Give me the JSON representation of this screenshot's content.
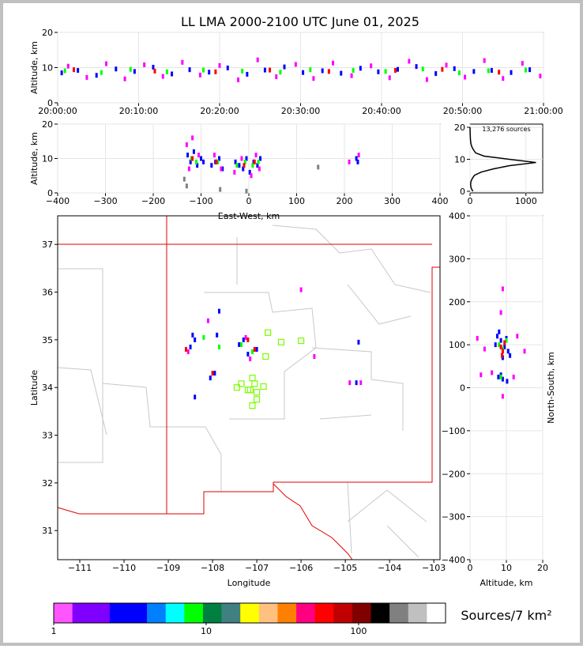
{
  "chart_data": [
    {
      "type": "scatter",
      "title": "LL LMA 2000-2100 UTC June 01, 2025",
      "ylabel": "Altitude, km",
      "xlim": [
        0,
        60
      ],
      "xticks": [
        {
          "value": 0,
          "label": "20:00:00"
        },
        {
          "value": 10,
          "label": "20:10:00"
        },
        {
          "value": 20,
          "label": "20:20:00"
        },
        {
          "value": 30,
          "label": "20:30:00"
        },
        {
          "value": 40,
          "label": "20:40:00"
        },
        {
          "value": 50,
          "label": "20:50:00"
        },
        {
          "value": 60,
          "label": "21:00:00"
        }
      ],
      "ylim": [
        0,
        20
      ],
      "yticks": [
        0,
        10,
        20
      ],
      "grid": true,
      "series": [
        {
          "color": "#0000ff",
          "x": [
            0.5,
            2.5,
            4.8,
            7.2,
            9.5,
            11.8,
            14.1,
            16.3,
            18.7,
            21,
            23.4,
            25.6,
            28,
            30.3,
            32.7,
            35,
            37.4,
            39.6,
            42,
            44.3,
            46.7,
            49,
            51.4,
            53.6,
            56,
            58.3
          ],
          "y": [
            8.5,
            9.2,
            7.8,
            9.6,
            8.9,
            10.1,
            8.2,
            9.4,
            8.7,
            9.9,
            8.1,
            9.3,
            10.2,
            8.6,
            9.1,
            8.4,
            9.8,
            8.8,
            9.5,
            10.3,
            8.3,
            9.7,
            8.9,
            9.2,
            8.6,
            9.4
          ]
        },
        {
          "color": "#ff00ff",
          "x": [
            1.3,
            3.6,
            6,
            8.3,
            10.7,
            13,
            15.4,
            17.6,
            20,
            22.3,
            24.7,
            27,
            29.4,
            31.6,
            34,
            36.3,
            38.7,
            41,
            43.4,
            45.6,
            48,
            50.3,
            52.7,
            55,
            57.4,
            59.6
          ],
          "y": [
            10.4,
            7.2,
            11.1,
            6.8,
            10.8,
            7.5,
            11.5,
            7.9,
            10.6,
            6.5,
            12.2,
            7.4,
            10.9,
            6.9,
            11.3,
            7.7,
            10.5,
            7.1,
            11.8,
            6.6,
            10.7,
            7.3,
            12,
            6.9,
            11.2,
            7.6
          ]
        },
        {
          "color": "#00ff00",
          "x": [
            0.9,
            5.4,
            9,
            13.5,
            18,
            22.8,
            27.5,
            31.2,
            36.5,
            40.5,
            45.1,
            49.6,
            53.2,
            57.8
          ],
          "y": [
            9.1,
            8.6,
            9.5,
            8.8,
            9.3,
            9,
            8.7,
            9.4,
            9.2,
            8.9,
            9.6,
            8.5,
            9.1,
            9.3
          ]
        },
        {
          "color": "#ff0000",
          "x": [
            2,
            12,
            19.5,
            26.2,
            33.5,
            41.7,
            47.5,
            54.5
          ],
          "y": [
            9.4,
            9,
            8.8,
            9.3,
            8.9,
            9.2,
            9.5,
            8.7
          ]
        }
      ]
    },
    {
      "type": "scatter",
      "xlabel": "East-West, km",
      "ylabel": "Altitude, km",
      "xlim": [
        -400,
        400
      ],
      "xticks": [
        {
          "value": -400,
          "label": "−400"
        },
        {
          "value": -300,
          "label": "−300"
        },
        {
          "value": -200,
          "label": "−200"
        },
        {
          "value": -100,
          "label": "−100"
        },
        0,
        100,
        200,
        300,
        400
      ],
      "ylim": [
        0,
        20
      ],
      "yticks": [
        0,
        10,
        20
      ],
      "grid": true,
      "series": [
        {
          "color": "#0000ff",
          "x": [
            -128,
            -122,
            -115,
            -108,
            -100,
            -95,
            -78,
            -70,
            -62,
            -55,
            -28,
            -20,
            -12,
            -5,
            2,
            10,
            18,
            24,
            225,
            228
          ],
          "y": [
            11,
            9,
            12,
            8,
            10,
            9,
            8,
            9,
            10,
            7,
            9,
            8,
            7,
            10,
            6,
            9,
            8,
            10,
            10,
            9
          ]
        },
        {
          "color": "#ff00ff",
          "x": [
            -130,
            -125,
            -118,
            -105,
            -72,
            -58,
            -30,
            -15,
            5,
            15,
            22,
            210,
            230
          ],
          "y": [
            14,
            7,
            16,
            11,
            11,
            7,
            6,
            10,
            5,
            11,
            7,
            9,
            11
          ]
        },
        {
          "color": "#00ff00",
          "x": [
            -120,
            -110,
            -65,
            -25,
            -8,
            8,
            20
          ],
          "y": [
            10,
            9,
            9,
            8,
            9,
            8,
            9
          ]
        },
        {
          "color": "#ff0000",
          "x": [
            -118,
            -68,
            -10,
            12
          ],
          "y": [
            10,
            9,
            8,
            9
          ]
        },
        {
          "color": "#808080",
          "x": [
            -130,
            -135,
            145,
            -60,
            -5
          ],
          "y": [
            2,
            4,
            7.5,
            1,
            0.5
          ]
        }
      ]
    },
    {
      "type": "line",
      "annotation": "13,276 sources",
      "xlim": [
        0,
        1300
      ],
      "xticks": [
        0,
        1000
      ],
      "ylim": [
        -0.5,
        21
      ],
      "yticks": [
        0,
        10,
        20
      ],
      "grid": true,
      "series": [
        {
          "color": "#000000",
          "x": [
            50,
            20,
            10,
            15,
            40,
            80,
            200,
            420,
            700,
            1180,
            700,
            250,
            100,
            60,
            30,
            15,
            8,
            5,
            3,
            1,
            0
          ],
          "y": [
            0,
            1,
            2,
            3,
            4,
            5,
            6,
            7,
            8,
            9,
            10,
            11,
            12,
            13,
            14,
            15,
            16,
            17,
            18,
            19,
            20
          ]
        }
      ]
    },
    {
      "type": "map",
      "xlabel": "Longitude",
      "ylabel": "Latitude",
      "xlim": [
        -111.5,
        -102.86
      ],
      "xticks": [
        {
          "value": -111,
          "label": "−111"
        },
        {
          "value": -110,
          "label": "−110"
        },
        {
          "value": -109,
          "label": "−109"
        },
        {
          "value": -108,
          "label": "−108"
        },
        {
          "value": -107,
          "label": "−107"
        },
        {
          "value": -106,
          "label": "−106"
        },
        {
          "value": -105,
          "label": "−105"
        },
        {
          "value": -104,
          "label": "−104"
        },
        {
          "value": -103,
          "label": "−103"
        }
      ],
      "ylim": [
        30.39,
        37.6
      ],
      "yticks": [
        31,
        32,
        33,
        34,
        35,
        36,
        37
      ],
      "grid": false,
      "series": [
        {
          "color": "#0000ff",
          "x": [
            -108.45,
            -108.4,
            -108.5,
            -107.9,
            -107.95,
            -107.3,
            -107.2,
            -107.4,
            -107,
            -108.05,
            -108.4,
            -104.7,
            -104.75,
            -107.85
          ],
          "y": [
            35.1,
            35,
            34.85,
            35.1,
            34.3,
            35,
            34.7,
            34.9,
            34.8,
            34.2,
            33.8,
            34.95,
            34.1,
            35.6
          ]
        },
        {
          "color": "#ff00ff",
          "x": [
            -108.55,
            -108.1,
            -107.25,
            -107.15,
            -104.9,
            -104.65,
            -106,
            -105.7
          ],
          "y": [
            34.75,
            35.4,
            35.05,
            34.6,
            34.1,
            34.1,
            36.05,
            34.65
          ]
        },
        {
          "color": "#00ff00",
          "x": [
            -108.2,
            -107.85,
            -107.1,
            -107.35
          ],
          "y": [
            35.05,
            34.85,
            34.75,
            34.9
          ]
        },
        {
          "color": "#ff0000",
          "x": [
            -108,
            -107.2,
            -107.05,
            -108.6
          ],
          "y": [
            34.3,
            35,
            34.8,
            34.8
          ]
        },
        {
          "color": "#7cfc00",
          "marker": "square-open",
          "x": [
            -106.75,
            -106.45,
            -106,
            -106.8,
            -107.1,
            -107.05,
            -107.15,
            -107.45,
            -107.35,
            -107.2,
            -107,
            -106.85,
            -107,
            -107.1
          ],
          "y": [
            35.15,
            34.95,
            34.98,
            34.65,
            34.2,
            34.08,
            33.95,
            34,
            34.08,
            33.95,
            33.9,
            34.02,
            33.75,
            33.62
          ]
        }
      ]
    },
    {
      "type": "scatter",
      "xlabel": "Altitude, km",
      "ylabel": "North-South, km",
      "ylabel_side": "right",
      "xlim": [
        0,
        20
      ],
      "xticks": [
        0,
        10,
        20
      ],
      "ylim": [
        -400,
        400
      ],
      "yticks": [
        {
          "value": -400,
          "label": "−400"
        },
        {
          "value": -300,
          "label": "−300"
        },
        {
          "value": -200,
          "label": "−200"
        },
        {
          "value": -100,
          "label": "−100"
        },
        0,
        100,
        200,
        300,
        400
      ],
      "grid": true,
      "series": [
        {
          "color": "#0000ff",
          "x": [
            7.5,
            8.5,
            9.5,
            10.5,
            7,
            11,
            8,
            9,
            10,
            8.5,
            9,
            7.8,
            10.2
          ],
          "y": [
            120,
            110,
            95,
            85,
            100,
            75,
            130,
            70,
            115,
            30,
            20,
            25,
            15
          ]
        },
        {
          "color": "#ff00ff",
          "x": [
            2,
            4,
            13,
            15,
            6,
            9,
            3,
            12,
            8.5,
            9
          ],
          "y": [
            115,
            90,
            120,
            85,
            35,
            230,
            30,
            25,
            175,
            -20
          ]
        },
        {
          "color": "#00ff00",
          "x": [
            8,
            9,
            10,
            8.5
          ],
          "y": [
            100,
            90,
            110,
            25
          ]
        },
        {
          "color": "#ff0000",
          "x": [
            8.5,
            9.5,
            9,
            8.8
          ],
          "y": [
            95,
            105,
            85,
            75
          ]
        }
      ]
    },
    {
      "type": "colorbar",
      "label": "Sources/7 km²",
      "log": true,
      "xlim": [
        1,
        372
      ],
      "xticks": [
        1,
        10,
        100
      ],
      "colors": [
        "#ff55ff",
        "#8000ff",
        "#8000ff",
        "#0000ff",
        "#0000ff",
        "#0080ff",
        "#00ffff",
        "#00ff00",
        "#008040",
        "#408080",
        "#ffff00",
        "#ffc080",
        "#ff8000",
        "#ff0080",
        "#ff0000",
        "#c00000",
        "#800000",
        "#000000",
        "#808080",
        "#c0c0c0",
        "#ffffff"
      ]
    }
  ]
}
